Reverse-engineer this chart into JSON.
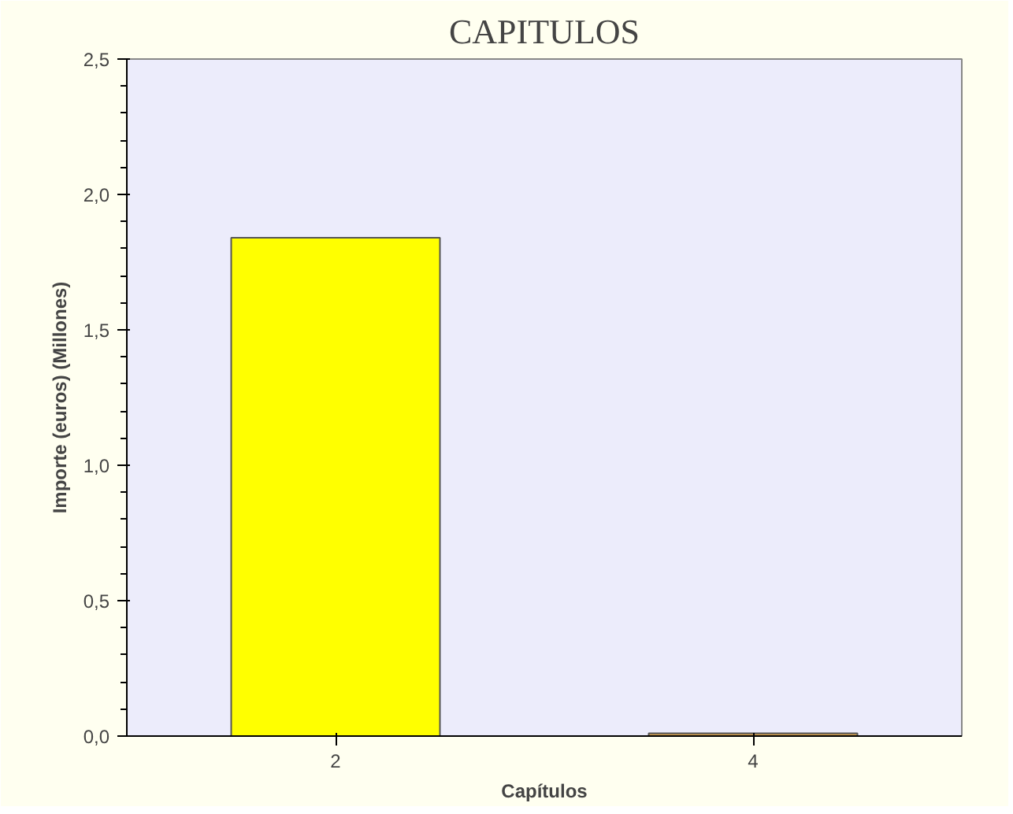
{
  "chart_data": {
    "type": "bar",
    "title": "CAPITULOS",
    "xlabel": "Capítulos",
    "ylabel": "Importe (euros) (Millones)",
    "categories": [
      "2",
      "4"
    ],
    "values": [
      1.84,
      0.01
    ],
    "colors": [
      "#ffff00",
      "#d4a04c"
    ],
    "ylim": [
      0,
      2.5
    ],
    "yticks": [
      {
        "value": 0,
        "label": "0,0"
      },
      {
        "value": 0.5,
        "label": "0,5"
      },
      {
        "value": 1,
        "label": "1,0"
      },
      {
        "value": 1.5,
        "label": "1,5"
      },
      {
        "value": 2,
        "label": "2,0"
      },
      {
        "value": 2.5,
        "label": "2,5"
      }
    ],
    "grid": false
  }
}
